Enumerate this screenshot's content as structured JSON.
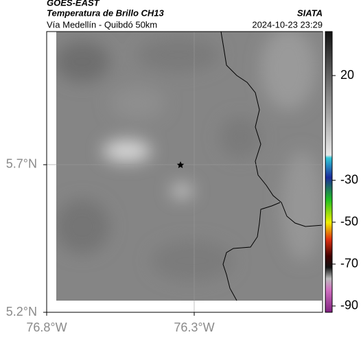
{
  "header": {
    "satellite": "GOES-EAST",
    "product": "Temperatura de Brillo CH13",
    "source": "SIATA",
    "region": "Vía Medellín - Quibdó 50km",
    "timestamp": "2024-10-23 23:29"
  },
  "chart_data": {
    "type": "map",
    "xlim": [
      -76.8,
      -75.865
    ],
    "ylim": [
      5.2,
      6.151
    ],
    "xticks": [
      {
        "value": -76.8,
        "label": "76.8°W"
      },
      {
        "value": -76.3,
        "label": "76.3°W"
      }
    ],
    "yticks": [
      {
        "value": 5.2,
        "label": "5.2°N"
      },
      {
        "value": 5.7,
        "label": "5.7°N"
      }
    ],
    "grid": true,
    "colorbar": {
      "ylim": [
        -93,
        41
      ],
      "yticks": [
        20,
        -30,
        -50,
        -70,
        -90
      ]
    }
  }
}
